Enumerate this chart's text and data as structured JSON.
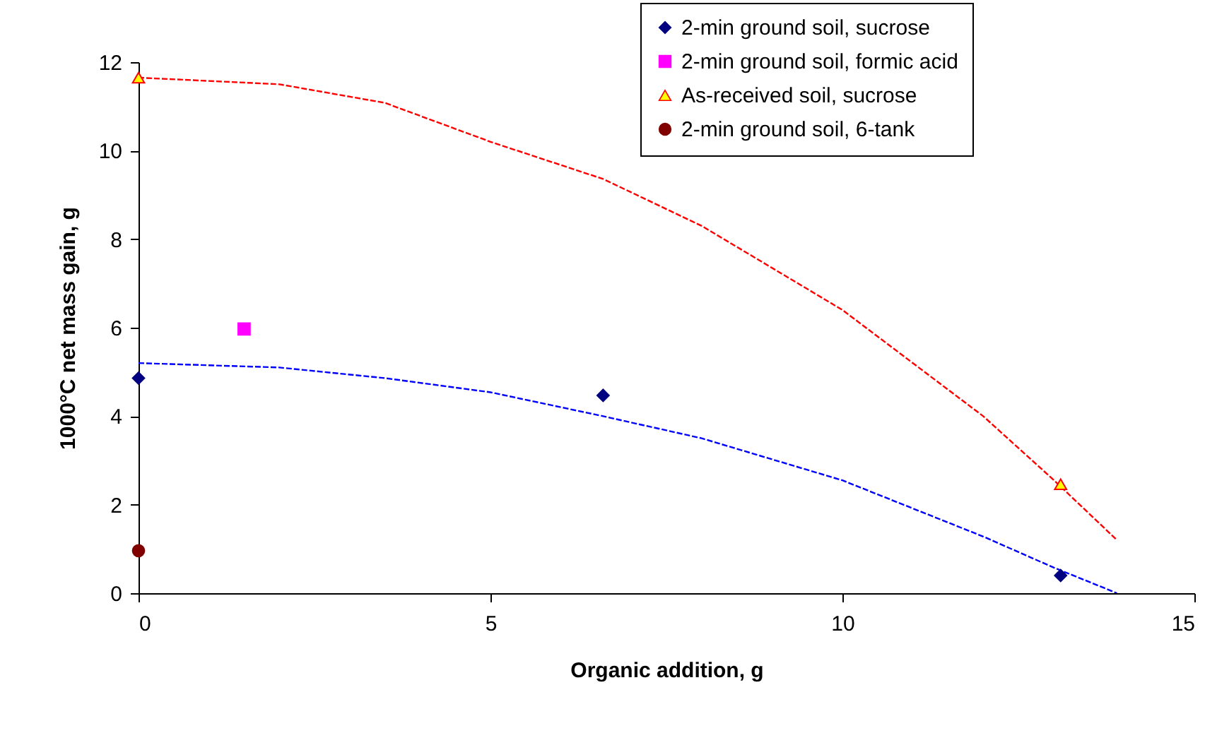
{
  "chart_data": {
    "type": "scatter",
    "xlabel": "Organic addition, g",
    "ylabel": "1000°C net mass gain, g",
    "xlim": [
      0,
      15
    ],
    "xticks": [
      0,
      5,
      10,
      15
    ],
    "ylim": [
      0,
      12
    ],
    "yticks": [
      0,
      2,
      4,
      6,
      8,
      10,
      12
    ],
    "grid": false,
    "legend": "top right",
    "series": [
      {
        "name": "2-min ground soil, sucrose",
        "marker": "diamond",
        "color": "#000080",
        "x": [
          0,
          6.6,
          13.1
        ],
        "values": [
          4.86,
          4.47,
          0.4
        ]
      },
      {
        "name": "2-min ground soil, formic acid",
        "marker": "square",
        "color": "#ff00ff",
        "x": [
          1.5
        ],
        "values": [
          5.97
        ]
      },
      {
        "name": "As-received soil, sucrose",
        "marker": "triangle",
        "color": "#ffff00",
        "x": [
          0,
          13.1
        ],
        "values": [
          11.65,
          2.46
        ]
      },
      {
        "name": "2-min ground soil, 6-tank",
        "marker": "circle",
        "color": "#800000",
        "x": [
          0
        ],
        "values": [
          0.96
        ]
      },
      {
        "type": "line",
        "marker": "none",
        "line_style": "dashed",
        "color": "#ff0000",
        "x": [
          0,
          2,
          3.5,
          5,
          6.6,
          8,
          10,
          12,
          13,
          13.9
        ],
        "values": [
          11.65,
          11.5,
          11.08,
          10.2,
          9.36,
          8.3,
          6.4,
          4.0,
          2.56,
          1.2
        ]
      },
      {
        "type": "line",
        "marker": "none",
        "line_style": "dashed",
        "color": "#0000ff",
        "x": [
          0,
          2,
          3.5,
          5,
          6.6,
          8,
          10,
          12,
          13,
          13.9
        ],
        "values": [
          5.2,
          5.1,
          4.86,
          4.54,
          4.0,
          3.5,
          2.55,
          1.28,
          0.58,
          0
        ]
      }
    ]
  }
}
